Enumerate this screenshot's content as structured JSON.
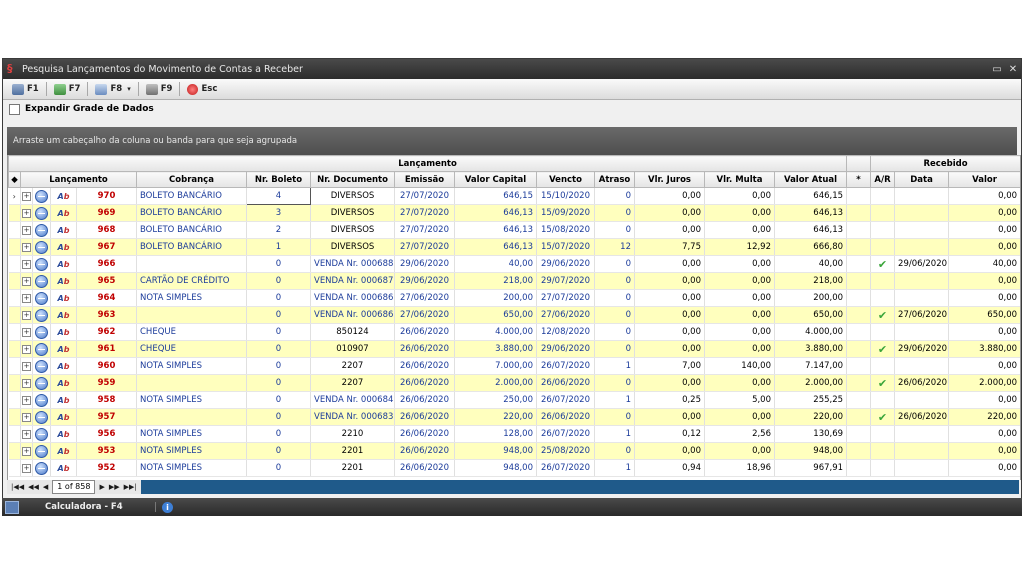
{
  "window": {
    "title": "Pesquisa Lançamentos do Movimento de Contas a Receber"
  },
  "toolbar": {
    "f1": "F1",
    "f7": "F7",
    "f8": "F8",
    "f9": "F9",
    "esc": "Esc"
  },
  "expand_label": "Expandir Grade de Dados",
  "group_panel_text": "Arraste um cabeçalho da coluna ou banda para que seja agrupada",
  "bands": {
    "lancamento": "Lançamento",
    "recebido": "Recebido"
  },
  "columns": {
    "lancamento": "Lançamento",
    "cobranca": "Cobrança",
    "nr_boleto": "Nr. Boleto",
    "nr_documento": "Nr. Documento",
    "emissao": "Emissão",
    "valor_capital": "Valor Capital",
    "vencto": "Vencto",
    "atraso": "Atraso",
    "vlr_juros": "Vlr. Juros",
    "vlr_multa": "Vlr. Multa",
    "valor_atual": "Valor Atual",
    "star": "*",
    "ar": "A/R",
    "data": "Data",
    "valor": "Valor"
  },
  "rows": [
    {
      "id": "970",
      "cobranca": "BOLETO BANCÁRIO",
      "boleto": "4",
      "doc": "DIVERSOS",
      "emissao": "27/07/2020",
      "capital": "646,15",
      "vencto": "15/10/2020",
      "atraso": "0",
      "juros": "0,00",
      "multa": "0,00",
      "atual": "646,15",
      "ar": false,
      "data": "",
      "valor": "0,00"
    },
    {
      "id": "969",
      "cobranca": "BOLETO BANCÁRIO",
      "boleto": "3",
      "doc": "DIVERSOS",
      "emissao": "27/07/2020",
      "capital": "646,13",
      "vencto": "15/09/2020",
      "atraso": "0",
      "juros": "0,00",
      "multa": "0,00",
      "atual": "646,13",
      "ar": false,
      "data": "",
      "valor": "0,00"
    },
    {
      "id": "968",
      "cobranca": "BOLETO BANCÁRIO",
      "boleto": "2",
      "doc": "DIVERSOS",
      "emissao": "27/07/2020",
      "capital": "646,13",
      "vencto": "15/08/2020",
      "atraso": "0",
      "juros": "0,00",
      "multa": "0,00",
      "atual": "646,13",
      "ar": false,
      "data": "",
      "valor": "0,00"
    },
    {
      "id": "967",
      "cobranca": "BOLETO BANCÁRIO",
      "boleto": "1",
      "doc": "DIVERSOS",
      "emissao": "27/07/2020",
      "capital": "646,13",
      "vencto": "15/07/2020",
      "atraso": "12",
      "juros": "7,75",
      "multa": "12,92",
      "atual": "666,80",
      "ar": false,
      "data": "",
      "valor": "0,00"
    },
    {
      "id": "966",
      "cobranca": "",
      "boleto": "0",
      "doc": "VENDA Nr. 000688",
      "emissao": "29/06/2020",
      "capital": "40,00",
      "vencto": "29/06/2020",
      "atraso": "0",
      "juros": "0,00",
      "multa": "0,00",
      "atual": "40,00",
      "ar": true,
      "data": "29/06/2020",
      "valor": "40,00"
    },
    {
      "id": "965",
      "cobranca": "CARTÃO DE CRÉDITO",
      "boleto": "0",
      "doc": "VENDA Nr. 000687",
      "emissao": "29/06/2020",
      "capital": "218,00",
      "vencto": "29/07/2020",
      "atraso": "0",
      "juros": "0,00",
      "multa": "0,00",
      "atual": "218,00",
      "ar": false,
      "data": "",
      "valor": "0,00"
    },
    {
      "id": "964",
      "cobranca": "NOTA SIMPLES",
      "boleto": "0",
      "doc": "VENDA Nr. 000686",
      "emissao": "27/06/2020",
      "capital": "200,00",
      "vencto": "27/07/2020",
      "atraso": "0",
      "juros": "0,00",
      "multa": "0,00",
      "atual": "200,00",
      "ar": false,
      "data": "",
      "valor": "0,00"
    },
    {
      "id": "963",
      "cobranca": "",
      "boleto": "0",
      "doc": "VENDA Nr. 000686",
      "emissao": "27/06/2020",
      "capital": "650,00",
      "vencto": "27/06/2020",
      "atraso": "0",
      "juros": "0,00",
      "multa": "0,00",
      "atual": "650,00",
      "ar": true,
      "data": "27/06/2020",
      "valor": "650,00"
    },
    {
      "id": "962",
      "cobranca": "CHEQUE",
      "boleto": "0",
      "doc": "850124",
      "emissao": "26/06/2020",
      "capital": "4.000,00",
      "vencto": "12/08/2020",
      "atraso": "0",
      "juros": "0,00",
      "multa": "0,00",
      "atual": "4.000,00",
      "ar": false,
      "data": "",
      "valor": "0,00"
    },
    {
      "id": "961",
      "cobranca": "CHEQUE",
      "boleto": "0",
      "doc": "010907",
      "emissao": "26/06/2020",
      "capital": "3.880,00",
      "vencto": "29/06/2020",
      "atraso": "0",
      "juros": "0,00",
      "multa": "0,00",
      "atual": "3.880,00",
      "ar": true,
      "data": "29/06/2020",
      "valor": "3.880,00"
    },
    {
      "id": "960",
      "cobranca": "NOTA SIMPLES",
      "boleto": "0",
      "doc": "2207",
      "emissao": "26/06/2020",
      "capital": "7.000,00",
      "vencto": "26/07/2020",
      "atraso": "1",
      "juros": "7,00",
      "multa": "140,00",
      "atual": "7.147,00",
      "ar": false,
      "data": "",
      "valor": "0,00"
    },
    {
      "id": "959",
      "cobranca": "",
      "boleto": "0",
      "doc": "2207",
      "emissao": "26/06/2020",
      "capital": "2.000,00",
      "vencto": "26/06/2020",
      "atraso": "0",
      "juros": "0,00",
      "multa": "0,00",
      "atual": "2.000,00",
      "ar": true,
      "data": "26/06/2020",
      "valor": "2.000,00"
    },
    {
      "id": "958",
      "cobranca": "NOTA SIMPLES",
      "boleto": "0",
      "doc": "VENDA Nr. 000684",
      "emissao": "26/06/2020",
      "capital": "250,00",
      "vencto": "26/07/2020",
      "atraso": "1",
      "juros": "0,25",
      "multa": "5,00",
      "atual": "255,25",
      "ar": false,
      "data": "",
      "valor": "0,00"
    },
    {
      "id": "957",
      "cobranca": "",
      "boleto": "0",
      "doc": "VENDA Nr. 000683",
      "emissao": "26/06/2020",
      "capital": "220,00",
      "vencto": "26/06/2020",
      "atraso": "0",
      "juros": "0,00",
      "multa": "0,00",
      "atual": "220,00",
      "ar": true,
      "data": "26/06/2020",
      "valor": "220,00"
    },
    {
      "id": "956",
      "cobranca": "NOTA SIMPLES",
      "boleto": "0",
      "doc": "2210",
      "emissao": "26/06/2020",
      "capital": "128,00",
      "vencto": "26/07/2020",
      "atraso": "1",
      "juros": "0,12",
      "multa": "2,56",
      "atual": "130,69",
      "ar": false,
      "data": "",
      "valor": "0,00"
    },
    {
      "id": "953",
      "cobranca": "NOTA SIMPLES",
      "boleto": "0",
      "doc": "2201",
      "emissao": "26/06/2020",
      "capital": "948,00",
      "vencto": "25/08/2020",
      "atraso": "0",
      "juros": "0,00",
      "multa": "0,00",
      "atual": "948,00",
      "ar": false,
      "data": "",
      "valor": "0,00"
    },
    {
      "id": "952",
      "cobranca": "NOTA SIMPLES",
      "boleto": "0",
      "doc": "2201",
      "emissao": "26/06/2020",
      "capital": "948,00",
      "vencto": "26/07/2020",
      "atraso": "1",
      "juros": "0,94",
      "multa": "18,96",
      "atual": "967,91",
      "ar": false,
      "data": "",
      "valor": "0,00"
    }
  ],
  "navigator": {
    "page_info": "1 of 858"
  },
  "status": {
    "calc": "Calculadora - F4"
  },
  "colors": {
    "alt_row": "#ffffbe",
    "code_red": "#c00000",
    "text_blue": "#1b3b9a",
    "nav_blue": "#1f5a8a"
  }
}
